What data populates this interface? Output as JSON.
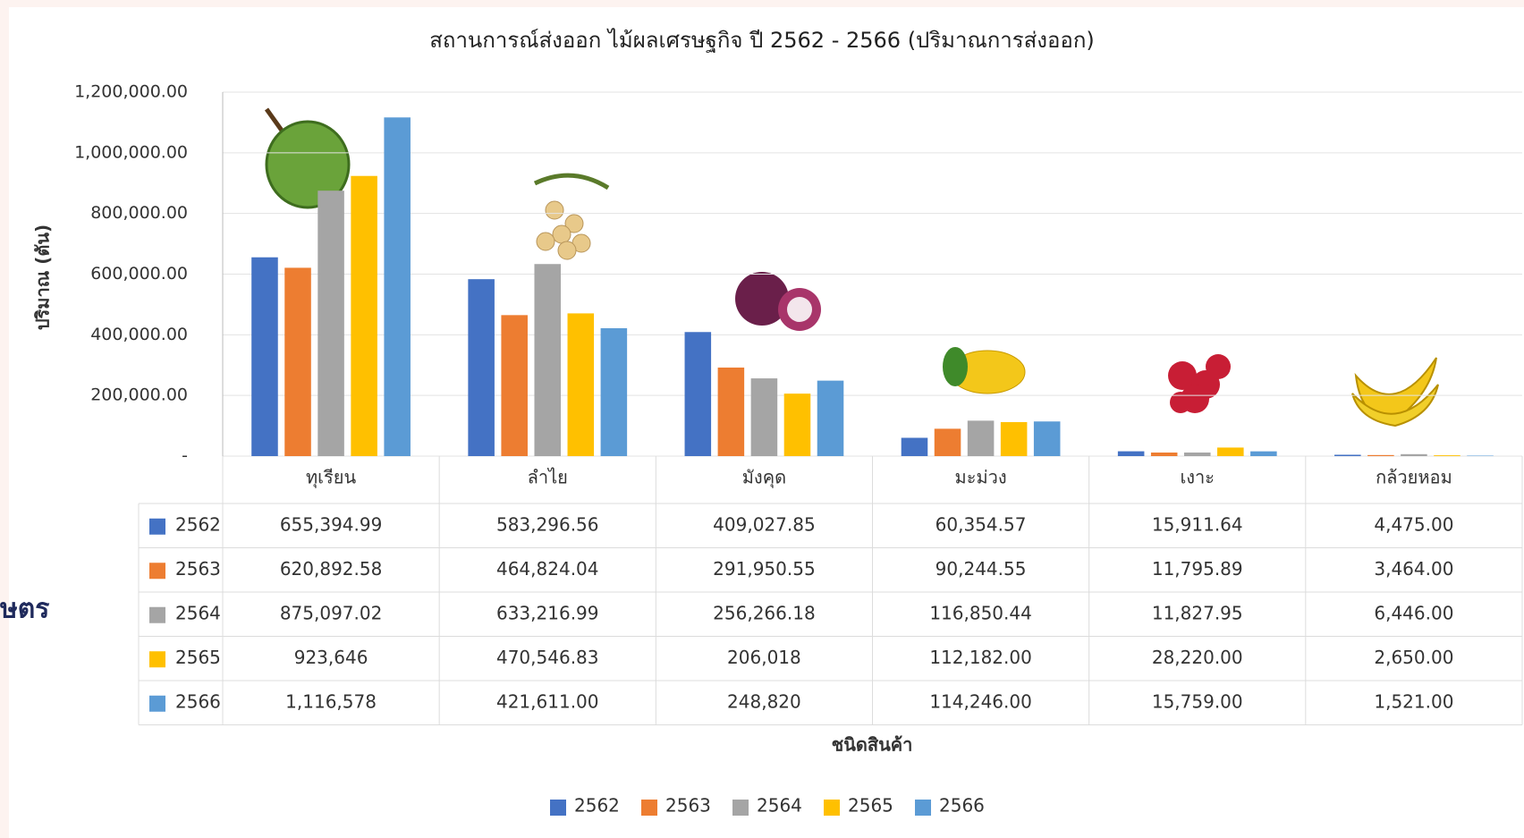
{
  "chart_data": {
    "type": "bar",
    "title": "สถานการณ์ส่งออก ไม้ผลเศรษฐกิจ ปี 2562 - 2566 (ปริมาณการส่งออก)",
    "y_axis_label": "ปริมาณ (ตัน)",
    "x_axis_label": "ชนิดสินค้า",
    "side_text": "ษตร",
    "categories": [
      "ทุเรียน",
      "ลำไย",
      "มังคุด",
      "มะม่วง",
      "เงาะ",
      "กล้วยหอม"
    ],
    "series": [
      {
        "name": "2562",
        "color": "#4472c4",
        "values": [
          655394.99,
          583296.56,
          409027.85,
          60354.57,
          15911.64,
          4475.0
        ],
        "value_labels": [
          "655,394.99",
          "583,296.56",
          "409,027.85",
          "60,354.57",
          "15,911.64",
          "4,475.00"
        ]
      },
      {
        "name": "2563",
        "color": "#ed7d31",
        "values": [
          620892.58,
          464824.04,
          291950.55,
          90244.55,
          11795.89,
          3464.0
        ],
        "value_labels": [
          "620,892.58",
          "464,824.04",
          "291,950.55",
          "90,244.55",
          "11,795.89",
          "3,464.00"
        ]
      },
      {
        "name": "2564",
        "color": "#a5a5a5",
        "values": [
          875097.02,
          633216.99,
          256266.18,
          116850.44,
          11827.95,
          6446.0
        ],
        "value_labels": [
          "875,097.02",
          "633,216.99",
          "256,266.18",
          "116,850.44",
          "11,827.95",
          "6,446.00"
        ]
      },
      {
        "name": "2565",
        "color": "#ffc000",
        "values": [
          923646,
          470546.83,
          206018,
          112182.0,
          28220.0,
          2650.0
        ],
        "value_labels": [
          "923,646",
          "470,546.83",
          "206,018",
          "112,182.00",
          "28,220.00",
          "2,650.00"
        ]
      },
      {
        "name": "2566",
        "color": "#5b9bd5",
        "values": [
          1116578,
          421611.0,
          248820,
          114246.0,
          15759.0,
          1521.0
        ],
        "value_labels": [
          "1,116,578",
          "421,611.00",
          "248,820",
          "114,246.00",
          "15,759.00",
          "1,521.00"
        ]
      }
    ],
    "ylim": [
      0,
      1200000
    ],
    "yticks": [
      {
        "value": 0,
        "label": "-"
      },
      {
        "value": 200000,
        "label": "200,000.00"
      },
      {
        "value": 400000,
        "label": "400,000.00"
      },
      {
        "value": 600000,
        "label": "600,000.00"
      },
      {
        "value": 800000,
        "label": "800,000.00"
      },
      {
        "value": 1000000,
        "label": "1,000,000.00"
      },
      {
        "value": 1200000,
        "label": "1,200,000.00"
      }
    ],
    "grid": true,
    "legend": "bottom"
  }
}
